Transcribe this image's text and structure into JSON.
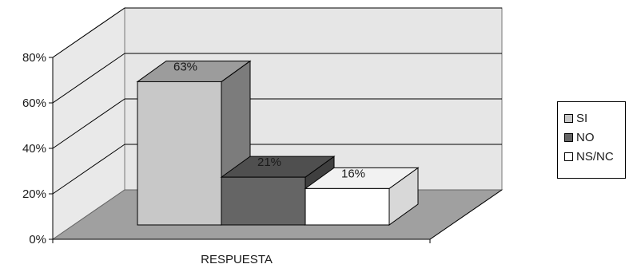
{
  "chart_data": {
    "type": "bar",
    "style": "3d-column",
    "categories": [
      "RESPUESTA"
    ],
    "xlabel": "RESPUESTA",
    "ylim": [
      0,
      80
    ],
    "yticks": [
      "0%",
      "20%",
      "40%",
      "60%",
      "80%"
    ],
    "grid": true,
    "legend_position": "right",
    "series": [
      {
        "name": "SI",
        "value": 63,
        "label": "63%",
        "color": "#c8c8c8"
      },
      {
        "name": "NO",
        "value": 21,
        "label": "21%",
        "color": "#656565"
      },
      {
        "name": "NS/NC",
        "value": 16,
        "label": "16%",
        "color": "#ffffff"
      }
    ]
  }
}
